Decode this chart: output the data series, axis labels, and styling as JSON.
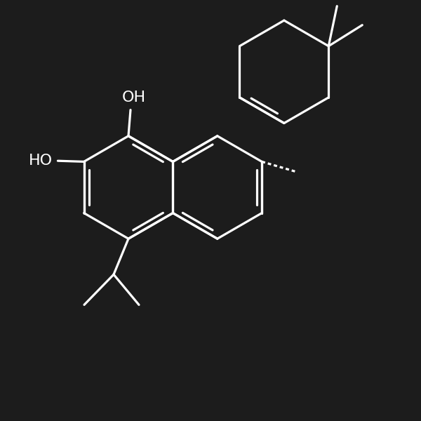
{
  "background": "#1c1c1c",
  "fg": "#ffffff",
  "lw": 2.3,
  "figsize": [
    6.0,
    6.0
  ],
  "dpi": 100,
  "font_size": 16,
  "font_size_small": 14
}
